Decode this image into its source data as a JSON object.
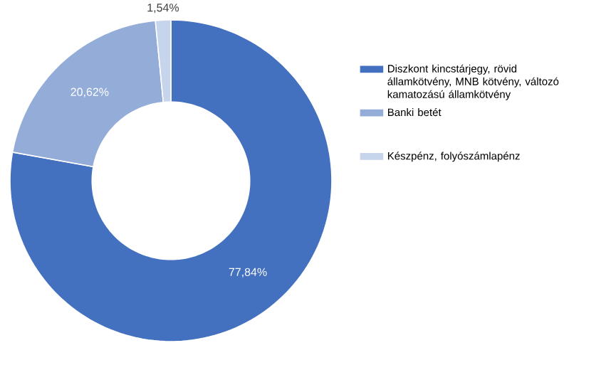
{
  "chart_data": {
    "type": "donut",
    "categories": [
      "Diszkont kincstárjegy, rövid államkötvény, MNB kötvény, változó kamatozású államkötvény",
      "Banki betét",
      "Készpénz, folyószámlapénz"
    ],
    "values": [
      77.84,
      20.62,
      1.54
    ],
    "value_labels": [
      "77,84%",
      "20,62%",
      "1,54%"
    ],
    "colors": [
      "#4470c0",
      "#93acd8",
      "#c6d4ec"
    ],
    "legend": "right"
  }
}
